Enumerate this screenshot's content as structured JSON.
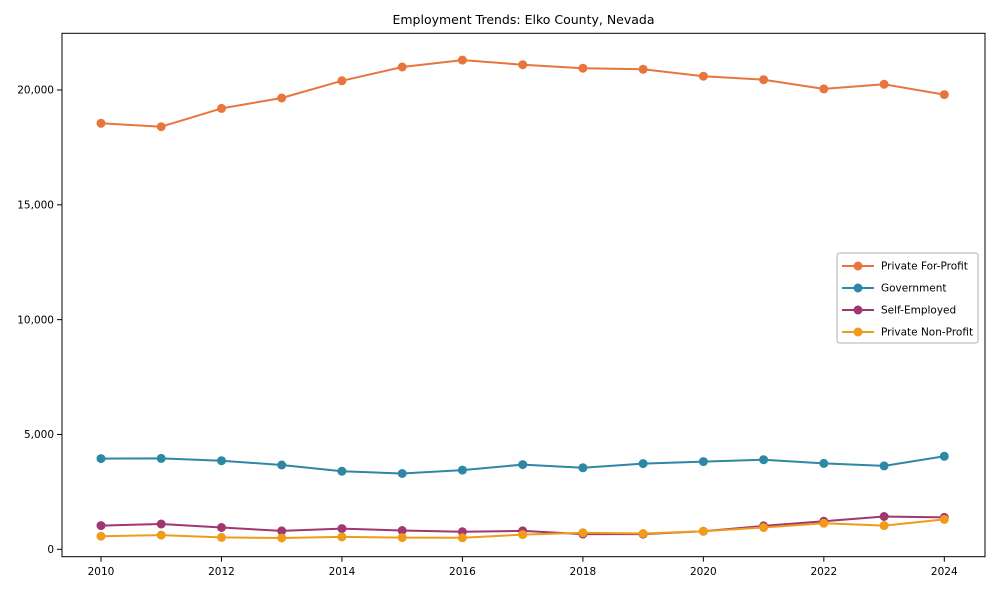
{
  "chart_data": {
    "type": "line",
    "title": "Employment Trends: Elko County, Nevada",
    "xlabel": "",
    "ylabel": "",
    "x": [
      2010,
      2011,
      2012,
      2013,
      2014,
      2015,
      2016,
      2017,
      2018,
      2019,
      2020,
      2021,
      2022,
      2023,
      2024
    ],
    "xtick_labels": [
      "2010",
      "2012",
      "2014",
      "2016",
      "2018",
      "2020",
      "2022",
      "2024"
    ],
    "xticks": [
      2010,
      2012,
      2014,
      2016,
      2018,
      2020,
      2022,
      2024
    ],
    "yticks": [
      {
        "value": 0,
        "label": "0"
      },
      {
        "value": 5000,
        "label": "5,000"
      },
      {
        "value": 10000,
        "label": "10,000"
      },
      {
        "value": 15000,
        "label": "15,000"
      },
      {
        "value": 20000,
        "label": "20,000"
      }
    ],
    "ylim": [
      -320,
      22470
    ],
    "grid": false,
    "legend_position": "center-right",
    "frame_color": "#000000",
    "background_color": "#ffffff",
    "series": [
      {
        "id": "private-for-profit",
        "name": "Private For-Profit",
        "color": "#e8753d",
        "values": [
          18550,
          18400,
          19200,
          19650,
          20400,
          21000,
          21300,
          21100,
          20950,
          20900,
          20600,
          20450,
          20050,
          20250,
          19800
        ]
      },
      {
        "id": "government",
        "name": "Government",
        "color": "#2d87a5",
        "values": [
          3950,
          3960,
          3860,
          3670,
          3400,
          3300,
          3450,
          3690,
          3550,
          3730,
          3820,
          3900,
          3740,
          3630,
          4050
        ]
      },
      {
        "id": "self-employed",
        "name": "Self-Employed",
        "color": "#a03672",
        "values": [
          1030,
          1100,
          950,
          800,
          900,
          820,
          760,
          800,
          660,
          660,
          790,
          1020,
          1220,
          1430,
          1390
        ]
      },
      {
        "id": "private-non-profit",
        "name": "Private Non-Profit",
        "color": "#f09c1a",
        "values": [
          570,
          620,
          520,
          490,
          540,
          510,
          500,
          640,
          720,
          690,
          790,
          950,
          1130,
          1030,
          1300
        ]
      }
    ]
  }
}
